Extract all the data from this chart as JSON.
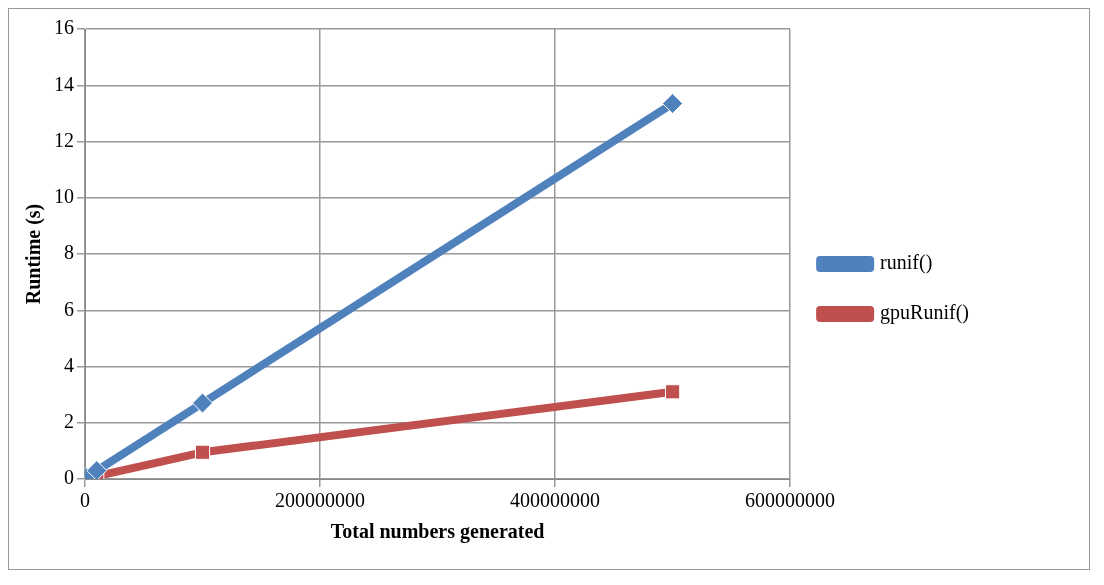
{
  "chart_data": {
    "type": "line",
    "xlabel": "Total numbers generated",
    "ylabel": "Runtime (s)",
    "xlim": [
      0,
      600000000
    ],
    "xticks": [
      0,
      200000000,
      400000000,
      600000000
    ],
    "ylim": [
      0,
      16
    ],
    "yticks": [
      0,
      2,
      4,
      6,
      8,
      10,
      12,
      14,
      16
    ],
    "grid": true,
    "legend": "right",
    "series": [
      {
        "name": "runif()",
        "color": "#4f81bd",
        "marker": "diamond",
        "x": [
          1000000,
          10000000,
          100000000,
          500000000
        ],
        "values": [
          0.05,
          0.3,
          2.7,
          13.35
        ]
      },
      {
        "name": "gpuRunif()",
        "color": "#c0504d",
        "marker": "square",
        "x": [
          1000000,
          10000000,
          100000000,
          500000000
        ],
        "values": [
          0.05,
          0.1,
          0.95,
          3.1
        ]
      }
    ]
  }
}
